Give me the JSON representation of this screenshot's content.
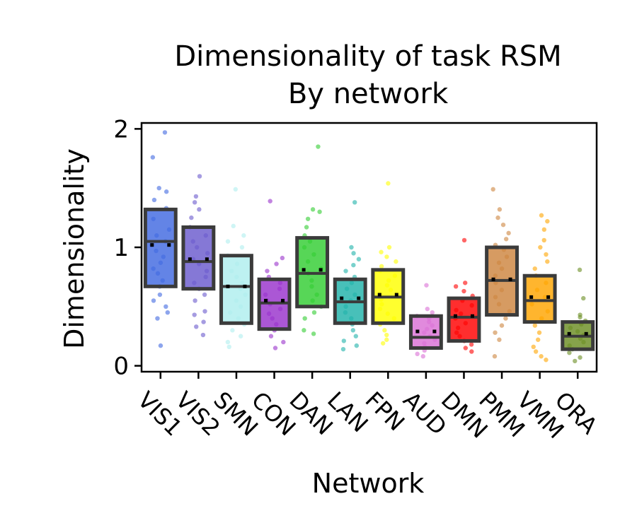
{
  "chart_data": {
    "type": "box",
    "title": "Dimensionality of task RSM",
    "subtitle": "By network",
    "xlabel": "Network",
    "ylabel": "Dimensionality",
    "ylim": [
      -0.05,
      2.05
    ],
    "yticks": [
      0,
      1,
      2
    ],
    "yticklabels": [
      "0",
      "1",
      "2"
    ],
    "categories": [
      "VIS1",
      "VIS2",
      "SMN",
      "CON",
      "DAN",
      "LAN",
      "FPN",
      "AUD",
      "DMN",
      "PMM",
      "VMM",
      "ORA"
    ],
    "colors": [
      "#4169e1",
      "#6a5acd",
      "#afeeee",
      "#9932cc",
      "#32cd32",
      "#20b2aa",
      "#ffff00",
      "#da70d6",
      "#ff0000",
      "#cd853f",
      "#ffa500",
      "#6b8e23"
    ],
    "boxes": [
      {
        "q1": 0.67,
        "median": 1.05,
        "q3": 1.32,
        "mean": 1.02
      },
      {
        "q1": 0.65,
        "median": 0.88,
        "q3": 1.17,
        "mean": 0.9
      },
      {
        "q1": 0.36,
        "median": 0.67,
        "q3": 0.93,
        "mean": 0.67
      },
      {
        "q1": 0.31,
        "median": 0.53,
        "q3": 0.73,
        "mean": 0.55
      },
      {
        "q1": 0.5,
        "median": 0.78,
        "q3": 1.08,
        "mean": 0.81
      },
      {
        "q1": 0.36,
        "median": 0.54,
        "q3": 0.73,
        "mean": 0.57
      },
      {
        "q1": 0.36,
        "median": 0.58,
        "q3": 0.81,
        "mean": 0.6
      },
      {
        "q1": 0.15,
        "median": 0.24,
        "q3": 0.42,
        "mean": 0.29
      },
      {
        "q1": 0.21,
        "median": 0.41,
        "q3": 0.57,
        "mean": 0.42
      },
      {
        "q1": 0.43,
        "median": 0.72,
        "q3": 1.0,
        "mean": 0.73
      },
      {
        "q1": 0.37,
        "median": 0.55,
        "q3": 0.76,
        "mean": 0.58
      },
      {
        "q1": 0.14,
        "median": 0.25,
        "q3": 0.37,
        "mean": 0.27
      }
    ],
    "points": [
      [
        1.97,
        1.76,
        1.5,
        1.47,
        1.4,
        1.33,
        1.24,
        1.15,
        1.1,
        1.05,
        1.02,
        0.97,
        0.92,
        0.87,
        0.82,
        0.78,
        0.72,
        0.67,
        0.6,
        0.55,
        0.5,
        0.45,
        0.4,
        0.17
      ],
      [
        1.6,
        1.43,
        1.38,
        1.32,
        1.25,
        1.17,
        1.1,
        1.05,
        1.0,
        0.95,
        0.9,
        0.86,
        0.8,
        0.75,
        0.7,
        0.65,
        0.6,
        0.55,
        0.46,
        0.43,
        0.37,
        0.33,
        0.26
      ],
      [
        1.49,
        1.18,
        1.1,
        1.05,
        1.0,
        0.93,
        0.86,
        0.8,
        0.75,
        0.7,
        0.65,
        0.6,
        0.55,
        0.5,
        0.45,
        0.4,
        0.35,
        0.3,
        0.25,
        0.2,
        0.16
      ],
      [
        1.39,
        0.91,
        0.86,
        0.8,
        0.75,
        0.7,
        0.65,
        0.6,
        0.55,
        0.52,
        0.48,
        0.44,
        0.4,
        0.35,
        0.3,
        0.25,
        0.2,
        0.15
      ],
      [
        1.85,
        1.32,
        1.3,
        1.24,
        1.17,
        1.1,
        1.05,
        1.0,
        0.94,
        0.88,
        0.82,
        0.78,
        0.72,
        0.67,
        0.6,
        0.55,
        0.5,
        0.45,
        0.4,
        0.3,
        0.27
      ],
      [
        1.38,
        1.0,
        0.95,
        0.9,
        0.85,
        0.8,
        0.75,
        0.7,
        0.65,
        0.6,
        0.55,
        0.5,
        0.45,
        0.4,
        0.35,
        0.3,
        0.25,
        0.21,
        0.17,
        0.14
      ],
      [
        1.54,
        1.0,
        0.96,
        0.92,
        0.88,
        0.84,
        0.8,
        0.76,
        0.72,
        0.68,
        0.64,
        0.6,
        0.56,
        0.52,
        0.48,
        0.44,
        0.4,
        0.35,
        0.3,
        0.26,
        0.22,
        0.19
      ],
      [
        0.68,
        0.48,
        0.45,
        0.42,
        0.4,
        0.37,
        0.34,
        0.31,
        0.28,
        0.25,
        0.22,
        0.19,
        0.16,
        0.13,
        0.1,
        0.08
      ],
      [
        1.06,
        0.7,
        0.67,
        0.63,
        0.59,
        0.55,
        0.51,
        0.47,
        0.44,
        0.4,
        0.36,
        0.32,
        0.28,
        0.25,
        0.21,
        0.18,
        0.15,
        0.12
      ],
      [
        1.49,
        1.32,
        1.25,
        1.19,
        1.12,
        1.07,
        1.02,
        0.98,
        0.92,
        0.87,
        0.82,
        0.76,
        0.7,
        0.64,
        0.58,
        0.52,
        0.46,
        0.4,
        0.34,
        0.28,
        0.22,
        0.08
      ],
      [
        1.27,
        1.22,
        1.15,
        1.06,
        1.0,
        0.94,
        0.88,
        0.82,
        0.76,
        0.7,
        0.64,
        0.58,
        0.52,
        0.46,
        0.4,
        0.34,
        0.28,
        0.22,
        0.16,
        0.12,
        0.08,
        0.05
      ],
      [
        0.81,
        0.57,
        0.43,
        0.41,
        0.38,
        0.35,
        0.32,
        0.29,
        0.26,
        0.23,
        0.2,
        0.17,
        0.14,
        0.11,
        0.07,
        0.04
      ]
    ]
  }
}
